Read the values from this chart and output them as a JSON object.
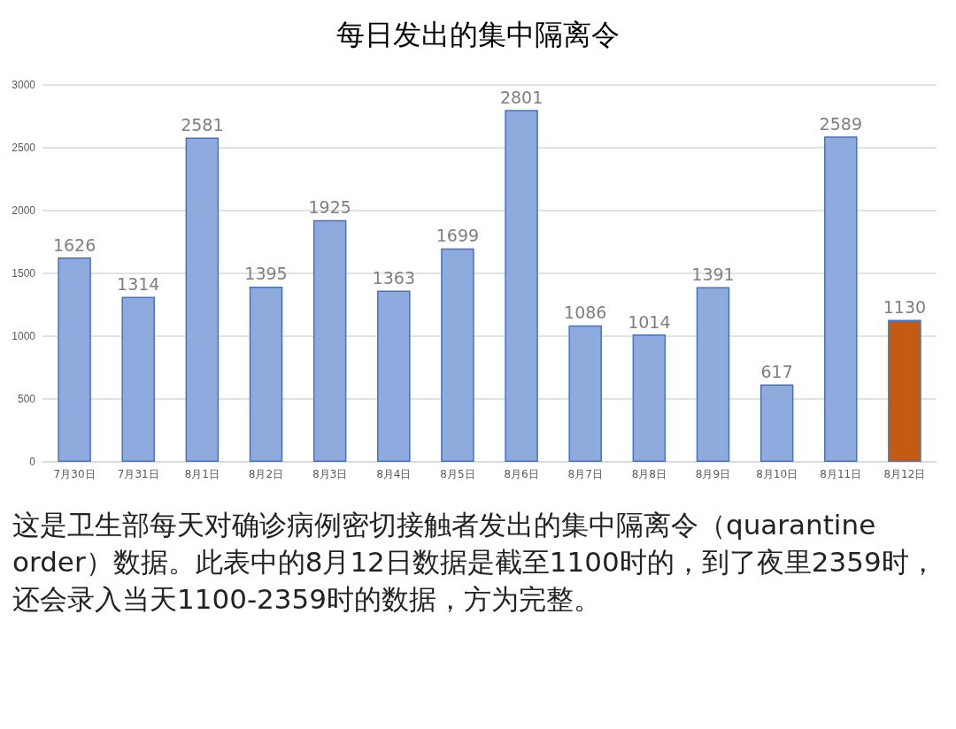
{
  "chart_data": {
    "type": "bar",
    "title": "每日发出的集中隔离令",
    "categories": [
      "7月30日",
      "7月31日",
      "8月1日",
      "8月2日",
      "8月3日",
      "8月4日",
      "8月5日",
      "8月6日",
      "8月7日",
      "8月8日",
      "8月9日",
      "8月10日",
      "8月11日",
      "8月12日"
    ],
    "values": [
      1626,
      1314,
      2581,
      1395,
      1925,
      1363,
      1699,
      2801,
      1086,
      1014,
      1391,
      617,
      2589,
      1130
    ],
    "colors": [
      "#8faadc",
      "#8faadc",
      "#8faadc",
      "#8faadc",
      "#8faadc",
      "#8faadc",
      "#8faadc",
      "#8faadc",
      "#8faadc",
      "#8faadc",
      "#8faadc",
      "#8faadc",
      "#8faadc",
      "#c55a11"
    ],
    "ylim": [
      0,
      3000
    ],
    "yticks": [
      0,
      500,
      1000,
      1500,
      2000,
      2500,
      3000
    ],
    "grid": "y",
    "data_labels": true,
    "annotations": [
      "这是卫生部每天对确诊病例密切接触者发出的集中隔离令（quarantine order）数据。此表中的8月12日数据是截至1100时的，到了夜里2359时，还会录入当天1100-2359时的数据，方为完整。"
    ]
  }
}
